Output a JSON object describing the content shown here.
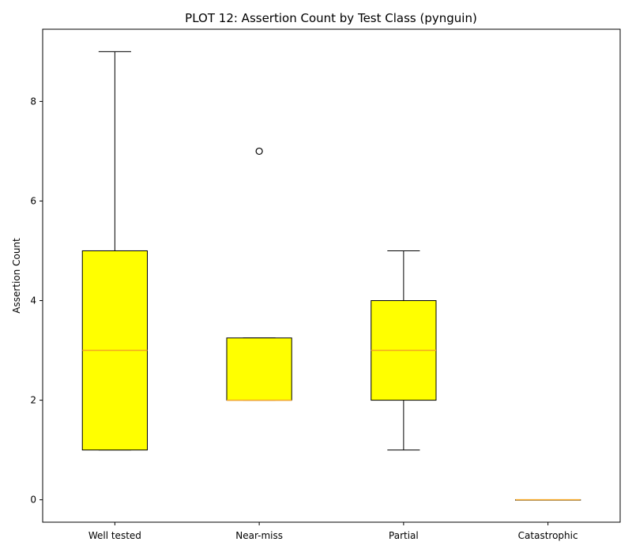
{
  "chart_data": {
    "type": "box",
    "title": "PLOT 12: Assertion Count by Test Class (pynguin)",
    "xlabel": "",
    "ylabel": "Assertion Count",
    "ylim": [
      -0.45,
      9.45
    ],
    "yticks": [
      0,
      2,
      4,
      6,
      8
    ],
    "grid": false,
    "categories": [
      "Well tested",
      "Near-miss",
      "Partial",
      "Catastrophic"
    ],
    "boxes": [
      {
        "category": "Well tested",
        "whisker_low": 1,
        "q1": 1,
        "median": 3,
        "q3": 5,
        "whisker_high": 9,
        "outliers": []
      },
      {
        "category": "Near-miss",
        "whisker_low": 2,
        "q1": 2,
        "median": 2,
        "q3": 3.25,
        "whisker_high": 3.25,
        "outliers": [
          7
        ]
      },
      {
        "category": "Partial",
        "whisker_low": 1,
        "q1": 2,
        "median": 3,
        "q3": 4,
        "whisker_high": 5,
        "outliers": []
      },
      {
        "category": "Catastrophic",
        "whisker_low": 0,
        "q1": 0,
        "median": 0,
        "q3": 0,
        "whisker_high": 0,
        "outliers": []
      }
    ],
    "colors": {
      "box_fill": "#ffff00",
      "box_edge": "#000000",
      "median": "#f5a623",
      "whisker": "#000000"
    }
  }
}
